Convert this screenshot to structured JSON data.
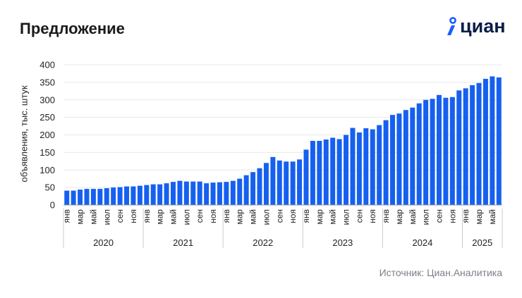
{
  "header": {
    "title": "Предложение",
    "logo_text": "циан"
  },
  "footer": {
    "source": "Источник: Циан.Аналитика"
  },
  "colors": {
    "bar": "#1660f0",
    "logo_pin": "#1a5cff",
    "logo_text": "#0a1e46",
    "grid": "#e6e8eb",
    "axis": "#c8cbd0"
  },
  "icons": {
    "logo": "cian-pin-icon"
  },
  "chart_data": {
    "type": "bar",
    "ylabel": "объявления, тыс. штук",
    "ylim": [
      0,
      400
    ],
    "yticks": [
      0,
      50,
      100,
      150,
      200,
      250,
      300,
      350,
      400
    ],
    "grid": true,
    "month_tick_labels": [
      "янв",
      "мар",
      "май",
      "июл",
      "сен",
      "ноя"
    ],
    "years": [
      "2020",
      "2021",
      "2022",
      "2023",
      "2024",
      "2025"
    ],
    "categories": [
      "янв 2020",
      "фев 2020",
      "мар 2020",
      "апр 2020",
      "май 2020",
      "июн 2020",
      "июл 2020",
      "авг 2020",
      "сен 2020",
      "окт 2020",
      "ноя 2020",
      "дек 2020",
      "янв 2021",
      "фев 2021",
      "мар 2021",
      "апр 2021",
      "май 2021",
      "июн 2021",
      "июл 2021",
      "авг 2021",
      "сен 2021",
      "окт 2021",
      "ноя 2021",
      "дек 2021",
      "янв 2022",
      "фев 2022",
      "мар 2022",
      "апр 2022",
      "май 2022",
      "июн 2022",
      "июл 2022",
      "авг 2022",
      "сен 2022",
      "окт 2022",
      "ноя 2022",
      "дек 2022",
      "янв 2023",
      "фев 2023",
      "мар 2023",
      "апр 2023",
      "май 2023",
      "июн 2023",
      "июл 2023",
      "авг 2023",
      "сен 2023",
      "окт 2023",
      "ноя 2023",
      "дек 2023",
      "янв 2024",
      "фев 2024",
      "мар 2024",
      "апр 2024",
      "май 2024",
      "июн 2024",
      "июл 2024",
      "авг 2024",
      "сен 2024",
      "окт 2024",
      "ноя 2024",
      "дек 2024",
      "янв 2025",
      "фев 2025",
      "мар 2025",
      "апр 2025",
      "май 2025",
      "июн 2025"
    ],
    "values": [
      41,
      41,
      44,
      46,
      46,
      46,
      48,
      50,
      51,
      53,
      53,
      55,
      57,
      59,
      59,
      62,
      66,
      69,
      67,
      67,
      67,
      62,
      64,
      65,
      66,
      69,
      75,
      85,
      94,
      105,
      120,
      137,
      127,
      124,
      124,
      130,
      158,
      183,
      183,
      187,
      192,
      188,
      200,
      220,
      207,
      219,
      216,
      228,
      242,
      257,
      261,
      271,
      278,
      290,
      300,
      303,
      314,
      306,
      308,
      327,
      333,
      342,
      348,
      360,
      367,
      364
    ]
  }
}
